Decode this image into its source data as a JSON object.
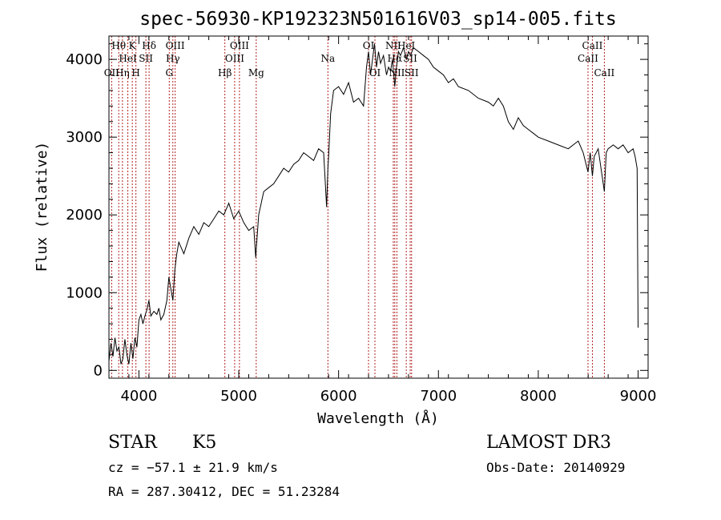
{
  "chart_data": {
    "type": "line",
    "title": "spec-56930-KP192323N501616V03_sp14-005.fits",
    "xlabel": "Wavelength (Å)",
    "ylabel": "Flux (relative)",
    "xlim": [
      3700,
      9100
    ],
    "ylim": [
      -100,
      4300
    ],
    "xticks": [
      4000,
      5000,
      6000,
      7000,
      8000,
      9000
    ],
    "yticks": [
      0,
      1000,
      2000,
      3000,
      4000
    ],
    "x_tick_labels": [
      "4000",
      "5000",
      "6000",
      "7000",
      "8000",
      "9000"
    ],
    "y_tick_labels": [
      "0",
      "1000",
      "2000",
      "3000",
      "4000"
    ],
    "grid": false,
    "spectral_lines": [
      {
        "wave": 3727,
        "label": "OII",
        "row": 3
      },
      {
        "wave": 3798,
        "label": "Hθ",
        "row": 1
      },
      {
        "wave": 3835,
        "label": "Hη",
        "row": 3
      },
      {
        "wave": 3889,
        "label": "HeI",
        "row": 2
      },
      {
        "wave": 3934,
        "label": "K",
        "row": 1
      },
      {
        "wave": 3970,
        "label": "H",
        "row": 3
      },
      {
        "wave": 4070,
        "label": "SII",
        "row": 2
      },
      {
        "wave": 4102,
        "label": "Hδ",
        "row": 1
      },
      {
        "wave": 4304,
        "label": "G",
        "row": 3
      },
      {
        "wave": 4340,
        "label": "Hγ",
        "row": 2
      },
      {
        "wave": 4363,
        "label": "OIII",
        "row": 1
      },
      {
        "wave": 4861,
        "label": "Hβ",
        "row": 3
      },
      {
        "wave": 4959,
        "label": "OIII",
        "row": 2
      },
      {
        "wave": 5007,
        "label": "OIII",
        "row": 1
      },
      {
        "wave": 5175,
        "label": "Mg",
        "row": 3
      },
      {
        "wave": 5893,
        "label": "Na",
        "row": 2
      },
      {
        "wave": 6300,
        "label": "OI",
        "row": 1
      },
      {
        "wave": 6364,
        "label": "OI",
        "row": 3
      },
      {
        "wave": 6548,
        "label": "NII",
        "row": 1
      },
      {
        "wave": 6563,
        "label": "Hα",
        "row": 2
      },
      {
        "wave": 6584,
        "label": "NII",
        "row": 3
      },
      {
        "wave": 6678,
        "label": "HeI",
        "row": 1
      },
      {
        "wave": 6717,
        "label": "SII",
        "row": 2
      },
      {
        "wave": 6731,
        "label": "SII",
        "row": 3
      },
      {
        "wave": 8498,
        "label": "CaII",
        "row": 2
      },
      {
        "wave": 8542,
        "label": "CaII",
        "row": 1
      },
      {
        "wave": 8662,
        "label": "CaII",
        "row": 3
      }
    ],
    "series": [
      {
        "x": [
          3700,
          3720,
          3740,
          3760,
          3780,
          3800,
          3820,
          3840,
          3860,
          3880,
          3900,
          3920,
          3940,
          3960,
          3980,
          4000,
          4020,
          4040,
          4060,
          4080,
          4100,
          4120,
          4150,
          4180,
          4200,
          4220,
          4250,
          4280,
          4300,
          4320,
          4340,
          4360,
          4380,
          4400,
          4450,
          4500,
          4550,
          4600,
          4650,
          4700,
          4750,
          4800,
          4850,
          4900,
          4950,
          5000,
          5050,
          5100,
          5150,
          5170,
          5180,
          5200,
          5250,
          5300,
          5350,
          5400,
          5450,
          5500,
          5550,
          5600,
          5650,
          5700,
          5750,
          5800,
          5850,
          5880,
          5893,
          5900,
          5920,
          5950,
          6000,
          6050,
          6100,
          6150,
          6200,
          6250,
          6280,
          6300,
          6320,
          6340,
          6360,
          6380,
          6400,
          6420,
          6450,
          6480,
          6500,
          6520,
          6540,
          6563,
          6580,
          6600,
          6620,
          6650,
          6680,
          6700,
          6720,
          6750,
          6800,
          6850,
          6900,
          6950,
          7000,
          7050,
          7100,
          7150,
          7200,
          7300,
          7400,
          7500,
          7550,
          7600,
          7650,
          7700,
          7750,
          7800,
          7850,
          7900,
          7950,
          8000,
          8100,
          8200,
          8300,
          8400,
          8450,
          8498,
          8520,
          8542,
          8560,
          8600,
          8662,
          8680,
          8700,
          8750,
          8800,
          8850,
          8900,
          8950,
          8970,
          8990,
          9000
        ],
        "y": [
          120,
          350,
          180,
          420,
          250,
          300,
          80,
          150,
          400,
          200,
          80,
          350,
          150,
          420,
          300,
          650,
          720,
          600,
          700,
          780,
          900,
          700,
          760,
          720,
          800,
          650,
          720,
          900,
          1200,
          1050,
          900,
          1300,
          1500,
          1650,
          1500,
          1700,
          1850,
          1750,
          1900,
          1850,
          1950,
          2050,
          2000,
          2150,
          1950,
          2050,
          1900,
          1800,
          1850,
          1450,
          1650,
          2000,
          2300,
          2350,
          2400,
          2500,
          2600,
          2550,
          2650,
          2700,
          2800,
          2750,
          2700,
          2850,
          2800,
          2100,
          2600,
          2750,
          3300,
          3600,
          3650,
          3550,
          3700,
          3450,
          3500,
          3400,
          3900,
          4100,
          3800,
          4000,
          4200,
          3900,
          4100,
          3950,
          4050,
          3800,
          3900,
          3850,
          4000,
          3650,
          3900,
          4100,
          4050,
          4150,
          4000,
          4100,
          4050,
          4150,
          4100,
          4050,
          4000,
          3900,
          3850,
          3800,
          3700,
          3750,
          3650,
          3600,
          3500,
          3450,
          3400,
          3500,
          3400,
          3200,
          3100,
          3250,
          3150,
          3100,
          3050,
          3000,
          2950,
          2900,
          2850,
          2950,
          2800,
          2550,
          2800,
          2500,
          2750,
          2850,
          2300,
          2800,
          2850,
          2900,
          2850,
          2900,
          2800,
          2850,
          2750,
          2600,
          550
        ]
      }
    ],
    "info": {
      "object_class": "STAR",
      "subclass": "K5",
      "survey": "LAMOST DR3",
      "cz": "cz = −57.1 ± 21.9 km/s",
      "obs_date": "Obs-Date: 20140929",
      "coords": "RA = 287.30412, DEC =  51.23284"
    },
    "colors": {
      "line": "#000000",
      "marker_lines": "#b22222",
      "background": "#ffffff"
    }
  }
}
